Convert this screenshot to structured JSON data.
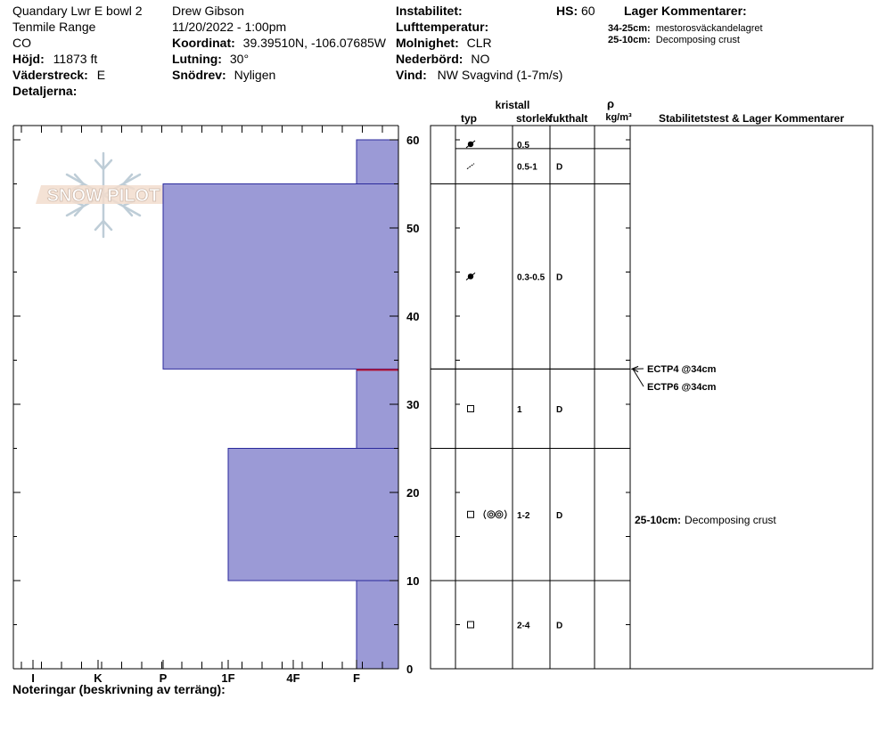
{
  "header": {
    "left": {
      "location": "Quandary Lwr E bowl 2",
      "range": "Tenmile Range",
      "state": "CO",
      "elevation_label": "Höjd:",
      "elevation": "11873 ft",
      "aspect_label": "Väderstreck:",
      "aspect": "E",
      "details_label": "Detaljerna:"
    },
    "middle": {
      "observer": "Drew Gibson",
      "datetime": "11/20/2022 - 1:00pm",
      "coord_label": "Koordinat:",
      "coord": "39.39510N, -106.07685W",
      "slope_label": "Lutning:",
      "slope": "30°",
      "drift_label": "Snödrev:",
      "drift": "Nyligen"
    },
    "right": {
      "instability_label": "Instabilitet:",
      "hs_label": "HS:",
      "hs": "60",
      "airtemp_label": "Lufttemperatur:",
      "sky_label": "Molnighet:",
      "sky": "CLR",
      "precip_label": "Nederbörd:",
      "precip": "NO",
      "wind_label": "Vind:",
      "wind": "NW Svagvind (1-7m/s)"
    },
    "layer_comments": {
      "title": "Lager Kommentarer:",
      "items": [
        {
          "range": "34-25cm:",
          "text": "mestorosväckandelagret"
        },
        {
          "range": "25-10cm:",
          "text": "Decomposing crust"
        }
      ]
    }
  },
  "logo": {
    "text": "SNOW PILOT"
  },
  "columns": {
    "crystal": "kristall",
    "type": "typ",
    "size": "storlek",
    "moisture": "fukthalt",
    "rho": "ρ",
    "density_unit": "kg/m³",
    "stability": "Stabilitetstest & Lager Kommentarer"
  },
  "footer": {
    "notes_label": "Noteringar (beskrivning av terräng):"
  },
  "chart_data": {
    "type": "snow-profile",
    "depth_axis": {
      "min": 0,
      "max": 60,
      "ticks": [
        0,
        10,
        20,
        30,
        40,
        50,
        60
      ],
      "unit": "cm"
    },
    "hardness_axis": {
      "labels": [
        "I",
        "K",
        "P",
        "1F",
        "4F",
        "F"
      ]
    },
    "hardness_layers": [
      {
        "bottom": 0,
        "top": 10,
        "hardness": "F"
      },
      {
        "bottom": 10,
        "top": 25,
        "hardness": "1F"
      },
      {
        "bottom": 25,
        "top": 34,
        "hardness": "F"
      },
      {
        "bottom": 34,
        "top": 55,
        "hardness": "P"
      },
      {
        "bottom": 55,
        "top": 60,
        "hardness": "F"
      }
    ],
    "weak_layer_depth": 34,
    "layers": [
      {
        "top": 60,
        "bottom": 59,
        "types": [
          "rounded"
        ],
        "size": "0.5",
        "moisture": ""
      },
      {
        "top": 59,
        "bottom": 55,
        "types": [
          "fragment"
        ],
        "size": "0.5-1",
        "moisture": "D"
      },
      {
        "top": 55,
        "bottom": 34,
        "types": [
          "rounded"
        ],
        "size": "0.3-0.5",
        "moisture": "D"
      },
      {
        "top": 34,
        "bottom": 25,
        "types": [
          "facet"
        ],
        "size": "1",
        "moisture": "D"
      },
      {
        "top": 25,
        "bottom": 10,
        "types": [
          "facet",
          "crust"
        ],
        "size": "1-2",
        "moisture": "D"
      },
      {
        "top": 10,
        "bottom": 0,
        "types": [
          "facet"
        ],
        "size": "2-4",
        "moisture": "D"
      }
    ],
    "tests": [
      {
        "label": "ECTP4 @34cm",
        "depth": 34
      },
      {
        "label": "ECTP6 @34cm",
        "depth": 34
      }
    ],
    "comments": [
      {
        "range": "25-10cm:",
        "text": "Decomposing crust",
        "top": 25,
        "bottom": 10
      }
    ]
  }
}
